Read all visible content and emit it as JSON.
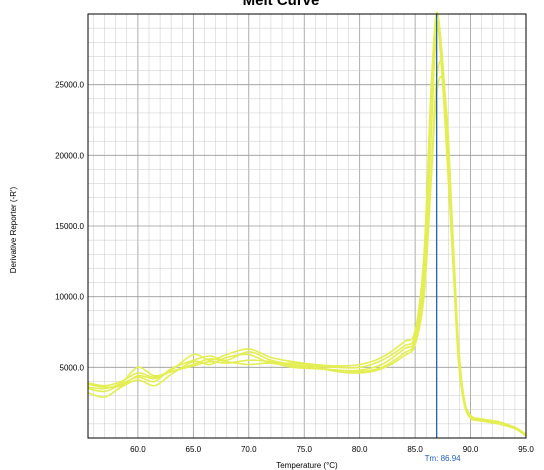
{
  "chart_data": {
    "type": "line",
    "title": "Melt Curve",
    "xlabel": "Temperature (°C)",
    "ylabel": "Derivative Reporter (-R')",
    "xlim": [
      55.5,
      95.0
    ],
    "ylim": [
      0,
      30000
    ],
    "x_ticks": [
      60.0,
      65.0,
      70.0,
      75.0,
      80.0,
      85.0,
      90.0,
      95.0
    ],
    "x_tick_labels": [
      "60.0",
      "65.0",
      "70.0",
      "75.0",
      "80.0",
      "85.0",
      "90.0",
      "95.0"
    ],
    "y_ticks": [
      5000,
      10000,
      15000,
      20000,
      25000
    ],
    "y_tick_labels": [
      "5000.0",
      "10000.0",
      "15000.0",
      "20000.0",
      "25000.0"
    ],
    "grid": true,
    "line_color": "#e4ee52",
    "threshold": {
      "x": 86.94,
      "label": "Tm: 86.94",
      "color": "#1f5fbf"
    },
    "series": [
      {
        "x": [
          55.5,
          57.0,
          58.5,
          60.0,
          61.5,
          63.0,
          65.0,
          66.5,
          68.0,
          70.0,
          72.0,
          74.0,
          76.0,
          78.0,
          80.0,
          82.0,
          84.0,
          85.0,
          85.8,
          86.4,
          86.9,
          87.4,
          87.9,
          88.4,
          88.9,
          89.4,
          90.0,
          91.0,
          92.5,
          94.0,
          95.0
        ],
        "y": [
          3900,
          3700,
          4000,
          4600,
          4300,
          4700,
          5200,
          5600,
          5400,
          5200,
          5300,
          5000,
          4900,
          4800,
          4700,
          5000,
          6000,
          6800,
          10500,
          18000,
          25000,
          26500,
          22000,
          14000,
          6500,
          2800,
          1500,
          1300,
          1100,
          700,
          200
        ]
      },
      {
        "x": [
          55.5,
          57.0,
          58.5,
          60.0,
          61.5,
          63.0,
          65.0,
          66.5,
          68.0,
          70.0,
          72.0,
          74.0,
          76.0,
          78.0,
          80.0,
          82.0,
          84.0,
          85.0,
          85.8,
          86.4,
          86.9,
          87.4,
          87.9,
          88.4,
          88.9,
          89.4,
          90.0,
          91.0,
          92.5,
          94.0,
          95.0
        ],
        "y": [
          3500,
          3300,
          3800,
          4300,
          4000,
          4900,
          5500,
          5800,
          5500,
          6100,
          5500,
          5200,
          5000,
          4800,
          4800,
          5200,
          6300,
          7000,
          11500,
          20500,
          28500,
          27000,
          21000,
          13500,
          6000,
          2600,
          1400,
          1200,
          1000,
          650,
          150
        ]
      },
      {
        "x": [
          55.5,
          57.0,
          58.5,
          60.0,
          61.5,
          63.0,
          65.0,
          66.5,
          68.0,
          70.0,
          72.0,
          74.0,
          76.0,
          78.0,
          80.0,
          82.0,
          84.0,
          85.0,
          85.8,
          86.4,
          86.9,
          87.4,
          87.9,
          88.4,
          88.9,
          89.4,
          90.0,
          91.0,
          92.5,
          94.0,
          95.0
        ],
        "y": [
          3200,
          2900,
          3600,
          4100,
          3700,
          4500,
          5400,
          5200,
          5700,
          5900,
          5300,
          5300,
          5100,
          5000,
          5000,
          5500,
          6500,
          7300,
          12500,
          23000,
          29500,
          26000,
          19500,
          12500,
          5500,
          2500,
          1400,
          1250,
          1050,
          700,
          200
        ]
      },
      {
        "x": [
          55.5,
          57.0,
          58.5,
          60.0,
          61.5,
          63.0,
          65.0,
          66.5,
          68.0,
          70.0,
          72.0,
          74.0,
          76.0,
          78.0,
          80.0,
          82.0,
          84.0,
          85.0,
          85.8,
          86.4,
          86.9,
          87.4,
          87.9,
          88.4,
          88.9,
          89.4,
          90.0,
          91.0,
          92.5,
          94.0,
          95.0
        ],
        "y": [
          3600,
          3500,
          3900,
          5000,
          4400,
          4800,
          5900,
          5500,
          5900,
          6300,
          5700,
          5400,
          5200,
          5100,
          5200,
          5700,
          6800,
          7600,
          13000,
          24000,
          30000,
          27500,
          21500,
          13000,
          5800,
          2700,
          1500,
          1300,
          1100,
          750,
          250
        ]
      },
      {
        "x": [
          55.5,
          57.0,
          58.5,
          60.0,
          61.5,
          63.0,
          65.0,
          66.5,
          68.0,
          70.0,
          72.0,
          74.0,
          76.0,
          78.0,
          80.0,
          82.0,
          84.0,
          85.0,
          85.8,
          86.4,
          86.9,
          87.4,
          87.9,
          88.4,
          88.9,
          89.4,
          90.0,
          91.0,
          92.5,
          94.0,
          95.0
        ],
        "y": [
          3800,
          3600,
          3700,
          4400,
          4200,
          4700,
          5100,
          5400,
          5300,
          5500,
          5400,
          5100,
          5000,
          4700,
          4600,
          4900,
          5800,
          6600,
          10000,
          17500,
          24000,
          25500,
          22500,
          14500,
          6800,
          2900,
          1600,
          1350,
          1150,
          750,
          250
        ]
      }
    ]
  }
}
